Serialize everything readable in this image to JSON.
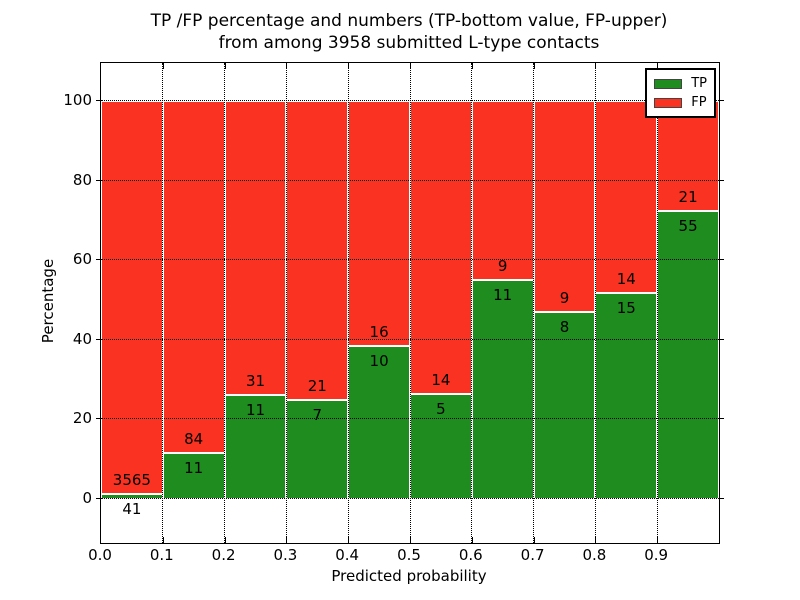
{
  "chart": {
    "title_line1": "TP /FP percentage and numbers (TP-bottom value, FP-upper)",
    "title_line2": "from among 3958 submitted L-type contacts",
    "xlabel": "Predicted probability",
    "ylabel": "Percentage",
    "legend": [
      {
        "label": "TP",
        "color": "#1e8c1e"
      },
      {
        "label": "FP",
        "color": "#f93222"
      }
    ]
  },
  "chart_data": {
    "type": "bar",
    "stacked": true,
    "normalized_to_percent": true,
    "title": "TP /FP percentage and numbers (TP-bottom value, FP-upper) from among 3958 submitted L-type contacts",
    "xlabel": "Predicted probability",
    "ylabel": "Percentage",
    "total_contacts": 3958,
    "bin_width": 0.1,
    "bin_starts": [
      0.0,
      0.1,
      0.2,
      0.3,
      0.4,
      0.5,
      0.6,
      0.7,
      0.8,
      0.9
    ],
    "series": [
      {
        "name": "TP",
        "color": "#1e8c1e",
        "counts": [
          41,
          11,
          11,
          7,
          10,
          5,
          11,
          8,
          15,
          55
        ]
      },
      {
        "name": "FP",
        "color": "#f93222",
        "counts": [
          3565,
          84,
          31,
          21,
          16,
          14,
          9,
          9,
          14,
          21
        ]
      }
    ],
    "tp_percent": [
      1.14,
      11.58,
      26.19,
      25.0,
      38.46,
      26.32,
      55.0,
      47.06,
      51.72,
      72.37
    ],
    "xticks": [
      "0.0",
      "0.1",
      "0.2",
      "0.3",
      "0.4",
      "0.5",
      "0.6",
      "0.7",
      "0.8",
      "0.9"
    ],
    "yticks": [
      0,
      20,
      40,
      60,
      80,
      100
    ],
    "xlim": [
      0.0,
      1.0
    ],
    "ylim": [
      -11,
      110
    ],
    "grid": {
      "style": "dotted",
      "color": "#000000"
    },
    "legend_position": "upper right"
  }
}
